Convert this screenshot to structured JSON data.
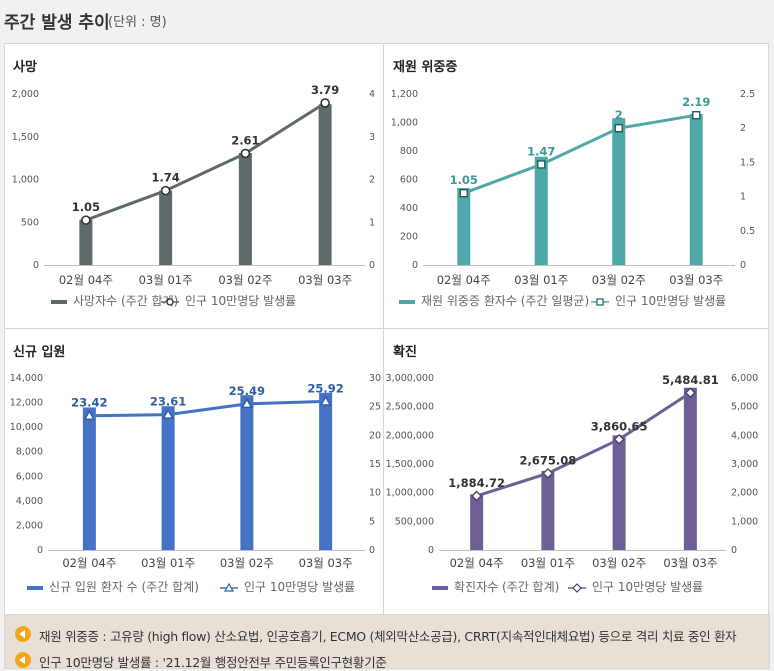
{
  "header": {
    "title": "주간 발생 추이",
    "unit": "(단위 : 명)"
  },
  "chart_data": [
    {
      "type": "bar",
      "key": "death",
      "title": "사망",
      "categories": [
        "02월 04주",
        "03월 01주",
        "03월 02주",
        "03월 03주"
      ],
      "series": [
        {
          "name": "사망자수 (주간 합계)",
          "kind": "bar",
          "axis": "left",
          "values": [
            530,
            870,
            1310,
            1880
          ]
        },
        {
          "name": "인구 10만명당 발생률",
          "kind": "line",
          "axis": "right",
          "marker": "circle",
          "values": [
            1.05,
            1.74,
            2.61,
            3.79
          ],
          "labels": [
            "1.05",
            "1.74",
            "2.61",
            "3.79"
          ]
        }
      ],
      "left_axis": {
        "min": 0,
        "max": 2000,
        "ticks": [
          "0",
          "500",
          "1,000",
          "1,500",
          "2,000"
        ]
      },
      "right_axis": {
        "min": 0,
        "max": 4,
        "ticks": [
          "0",
          "1",
          "2",
          "3",
          "4"
        ]
      },
      "bar_color": "#5d6a6a",
      "line_color": "#5d6a6a",
      "label_color": "#333333"
    },
    {
      "type": "bar",
      "key": "severe",
      "title": "재원 위중증",
      "categories": [
        "02월 04주",
        "03월 01주",
        "03월 02주",
        "03월 03주"
      ],
      "series": [
        {
          "name": "재원 위중증 환자수 (주간 일평균)",
          "kind": "bar",
          "axis": "left",
          "values": [
            540,
            760,
            1030,
            1060
          ]
        },
        {
          "name": "인구 10만명당 발생률",
          "kind": "line",
          "axis": "right",
          "marker": "square",
          "values": [
            1.05,
            1.47,
            2.0,
            2.19
          ],
          "labels": [
            "1.05",
            "1.47",
            "2",
            "2.19"
          ]
        }
      ],
      "left_axis": {
        "min": 0,
        "max": 1200,
        "ticks": [
          "0",
          "200",
          "400",
          "600",
          "800",
          "1,000",
          "1,200"
        ]
      },
      "right_axis": {
        "min": 0,
        "max": 2.5,
        "ticks": [
          "0",
          "0.5",
          "1",
          "1.5",
          "2",
          "2.5"
        ]
      },
      "bar_color": "#4ea8a8",
      "line_color": "#4ea8a8",
      "label_color": "#3a9a9a"
    },
    {
      "type": "bar",
      "key": "admission",
      "title": "신규 입원",
      "categories": [
        "02월 04주",
        "03월 01주",
        "03월 02주",
        "03월 03주"
      ],
      "series": [
        {
          "name": "신규 입원 환자 수 (주간 합계)",
          "kind": "bar",
          "axis": "left",
          "values": [
            11600,
            11700,
            12600,
            12800
          ]
        },
        {
          "name": "인구 10만명당 발생률",
          "kind": "line",
          "axis": "right",
          "marker": "triangle",
          "values": [
            23.42,
            23.61,
            25.49,
            25.92
          ],
          "labels": [
            "23.42",
            "23.61",
            "25.49",
            "25.92"
          ]
        }
      ],
      "left_axis": {
        "min": 0,
        "max": 14000,
        "ticks": [
          "0",
          "2,000",
          "4,000",
          "6,000",
          "8,000",
          "10,000",
          "12,000",
          "14,000"
        ]
      },
      "right_axis": {
        "min": 0,
        "max": 30,
        "ticks": [
          "0",
          "5",
          "10",
          "15",
          "20",
          "25",
          "30"
        ]
      },
      "bar_color": "#4472c4",
      "line_color": "#4472c4",
      "label_color": "#2e5da8"
    },
    {
      "type": "bar",
      "key": "confirmed",
      "title": "확진",
      "categories": [
        "02월 04주",
        "03월 01주",
        "03월 02주",
        "03월 03주"
      ],
      "series": [
        {
          "name": "확진자수 (주간 합계)",
          "kind": "bar",
          "axis": "left",
          "values": [
            970000,
            1380000,
            2000000,
            2830000
          ]
        },
        {
          "name": "인구 10만명당 발생률",
          "kind": "line",
          "axis": "right",
          "marker": "diamond",
          "values": [
            1884.72,
            2675.08,
            3860.65,
            5484.81
          ],
          "labels": [
            "1,884.72",
            "2,675.08",
            "3,860.65",
            "5,484.81"
          ]
        }
      ],
      "left_axis": {
        "min": 0,
        "max": 3000000,
        "ticks": [
          "0",
          "500,000",
          "1,000,000",
          "1,500,000",
          "2,000,000",
          "2,500,000",
          "3,000,000"
        ]
      },
      "right_axis": {
        "min": 0,
        "max": 6000,
        "ticks": [
          "0",
          "1,000",
          "2,000",
          "3,000",
          "4,000",
          "5,000",
          "6,000"
        ]
      },
      "bar_color": "#6e5f96",
      "line_color": "#6e5f96",
      "label_color": "#333333"
    }
  ],
  "notes": [
    "재원 위중증 : 고유량 (high flow) 산소요법, 인공호흡기, ECMO (체외막산소공급), CRRT(지속적인대체요법) 등으로 격리 치료 중인 환자",
    "인구 10만명당 발생률 : '21.12월 행정안전부 주민등록인구현황기준"
  ]
}
